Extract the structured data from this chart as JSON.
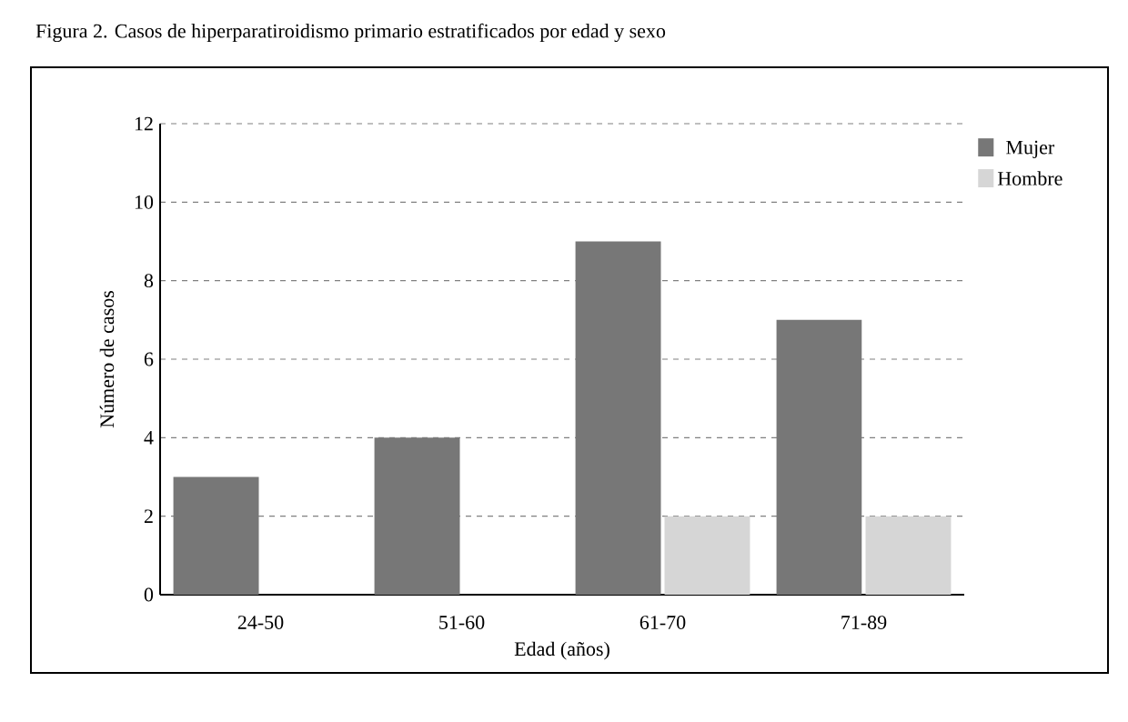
{
  "chart_data": {
    "type": "bar",
    "title": "Figura 2. Casos de hiperparatiroidismo primario estratificados por edad y sexo",
    "xlabel": "Edad (años)",
    "ylabel": "Número de casos",
    "categories": [
      "24-50",
      "51-60",
      "61-70",
      "71-89"
    ],
    "series": [
      {
        "name": "Mujer",
        "color": "#777777",
        "values": [
          3,
          4,
          9,
          7
        ]
      },
      {
        "name": "Hombre",
        "color": "#d6d6d6",
        "values": [
          0,
          0,
          2,
          2
        ]
      }
    ],
    "ylim": [
      0,
      12
    ],
    "yticks": [
      0,
      2,
      4,
      6,
      8,
      10,
      12
    ],
    "grid": "y",
    "legend": "top right"
  }
}
